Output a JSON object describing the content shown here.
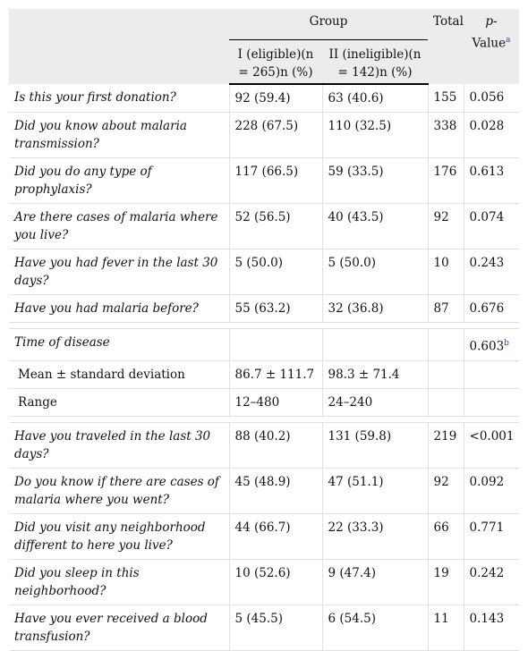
{
  "header": {
    "group": "Group",
    "total": "Total",
    "pvalue_line1": "p-",
    "pvalue_line2": "Value",
    "pvalue_note": "a",
    "col1": "I (eligible)(n = 265)n (%)",
    "col2": "II (ineligible)(n = 142)n (%)"
  },
  "rows_a": [
    {
      "q": "Is this your first donation?",
      "c1": "92 (59.4)",
      "c2": "63 (40.6)",
      "t": "155",
      "p": "0.056"
    },
    {
      "q": "Did you know about malaria transmission?",
      "c1": "228 (67.5)",
      "c2": "110 (32.5)",
      "t": "338",
      "p": "0.028"
    },
    {
      "q": "Did you do any type of prophylaxis?",
      "c1": "117 (66.5)",
      "c2": "59 (33.5)",
      "t": "176",
      "p": "0.613"
    },
    {
      "q": "Are there cases of malaria where you live?",
      "c1": "52 (56.5)",
      "c2": "40 (43.5)",
      "t": "92",
      "p": "0.074"
    },
    {
      "q": "Have you had fever in the last 30 days?",
      "c1": "5 (50.0)",
      "c2": "5 (50.0)",
      "t": "10",
      "p": "0.243"
    },
    {
      "q": "Have you had malaria before?",
      "c1": "55 (63.2)",
      "c2": "32 (36.8)",
      "t": "87",
      "p": "0.676"
    }
  ],
  "disease": {
    "q": "Time of disease",
    "p": "0.603",
    "p_note": "b",
    "mean_label": "Mean ± standard deviation",
    "mean_c1": "86.7 ± 111.7",
    "mean_c2": "98.3 ± 71.4",
    "range_label": "Range",
    "range_c1": "12–480",
    "range_c2": "24–240"
  },
  "rows_b": [
    {
      "q": "Have you traveled in the last 30 days?",
      "c1": "88 (40.2)",
      "c2": "131 (59.8)",
      "t": "219",
      "p": "<0.001"
    },
    {
      "q": "Do you know if there are cases of malaria where you went?",
      "c1": "45 (48.9)",
      "c2": "47 (51.1)",
      "t": "92",
      "p": "0.092"
    },
    {
      "q": "Did you visit any neighborhood different to here you live?",
      "c1": "44 (66.7)",
      "c2": "22 (33.3)",
      "t": "66",
      "p": "0.771"
    },
    {
      "q": "Did you sleep in this neighborhood?",
      "c1": "10 (52.6)",
      "c2": "9 (47.4)",
      "t": "19",
      "p": "0.242"
    },
    {
      "q": "Have you ever received a blood transfusion?",
      "c1": "5 (45.5)",
      "c2": "6 (54.5)",
      "t": "11",
      "p": "0.143"
    }
  ]
}
